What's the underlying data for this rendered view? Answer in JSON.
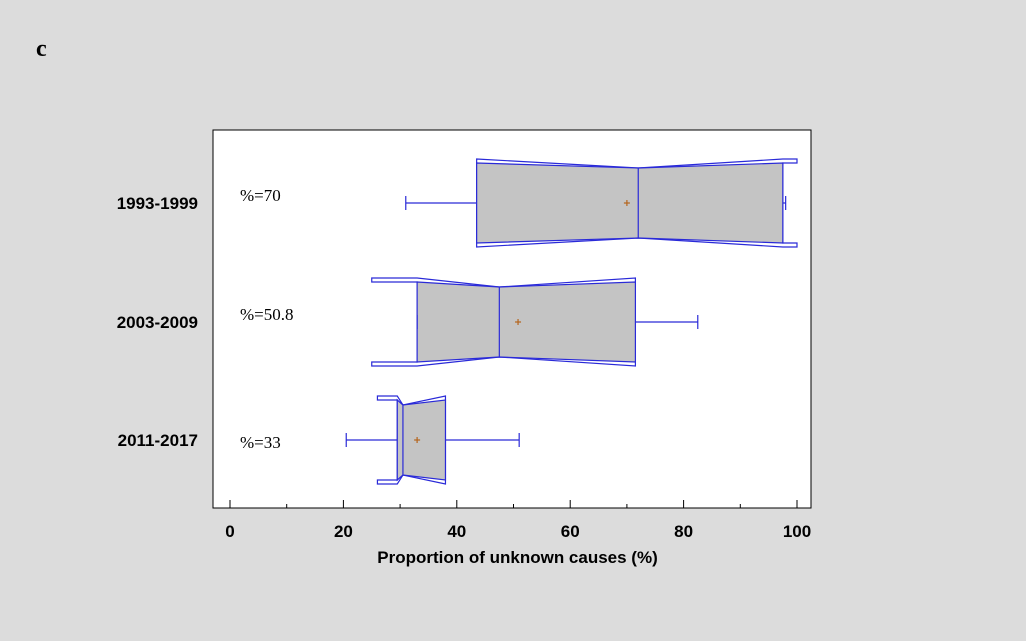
{
  "panel_label": "c",
  "chart_data": {
    "type": "box",
    "orientation": "horizontal",
    "notched": true,
    "xlabel": "Proportion of unknown causes (%)",
    "xlim": [
      -2,
      102
    ],
    "xticks": [
      0,
      20,
      40,
      60,
      80,
      100
    ],
    "colors": {
      "box_fill": "#c4c4c4",
      "stroke": "#2a2ad8",
      "mean_marker": "#b5651d",
      "plot_bg": "#ffffff"
    },
    "groups": [
      {
        "label": "1993-1999",
        "annotation": "%=70",
        "whisker_low": 31,
        "q1": 43.5,
        "median": 72,
        "q3": 97.5,
        "whisker_high": 98,
        "mean": 70,
        "notch_low": 43.5,
        "notch_high": 100
      },
      {
        "label": "2003-2009",
        "annotation": "%=50.8",
        "whisker_low": 33,
        "q1": 33,
        "median": 47.5,
        "q3": 71.5,
        "whisker_high": 82.5,
        "mean": 50.8,
        "notch_low": 25,
        "notch_high": 71.5
      },
      {
        "label": "2011-2017",
        "annotation": "%=33",
        "whisker_low": 20.5,
        "q1": 29.5,
        "median": 30.5,
        "q3": 38,
        "whisker_high": 51,
        "mean": 33,
        "notch_low": 26,
        "notch_high": 38
      }
    ]
  }
}
